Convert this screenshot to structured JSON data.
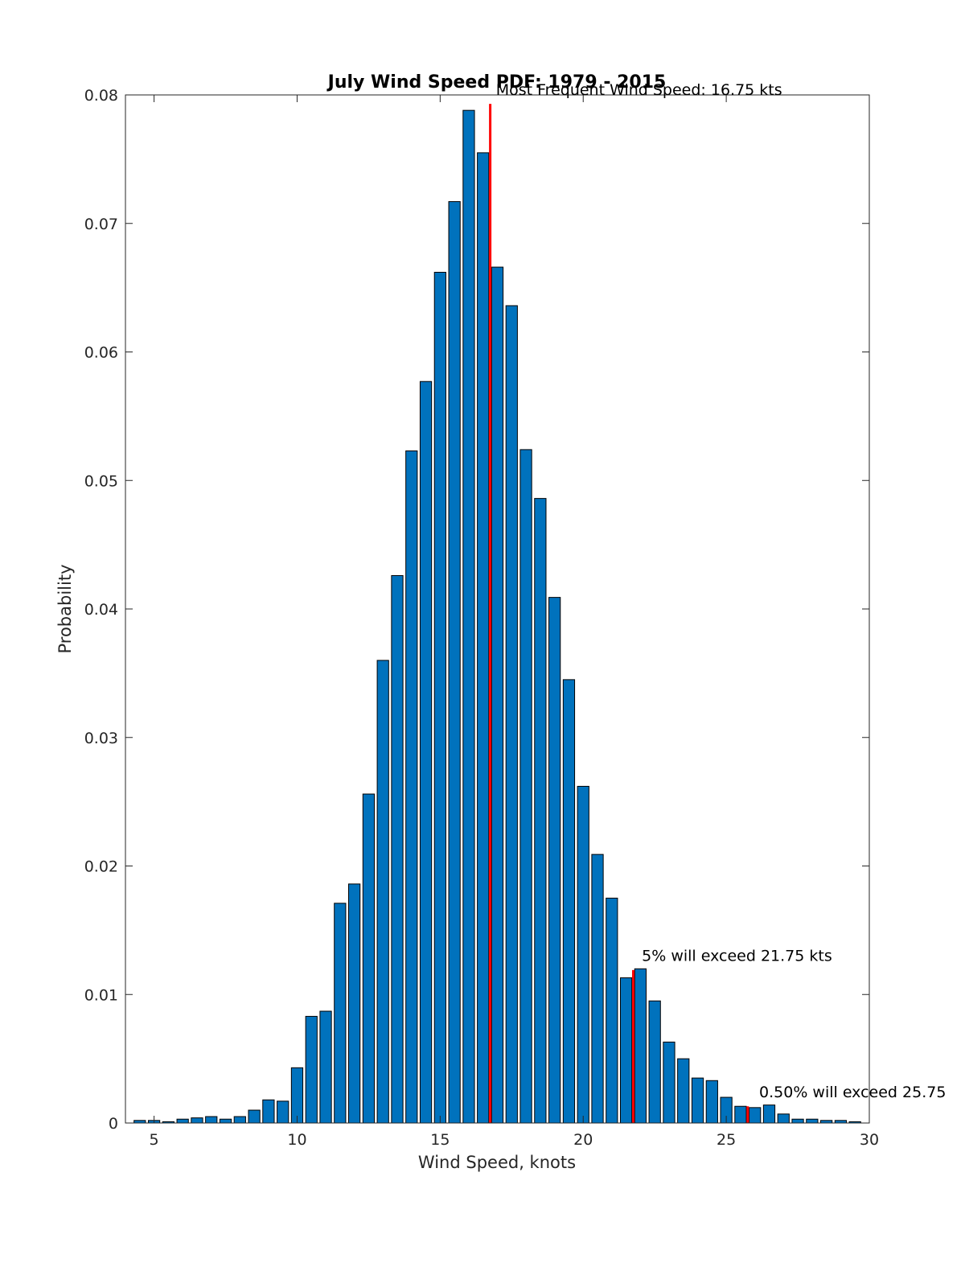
{
  "chart_data": {
    "type": "bar",
    "title": "July Wind Speed PDF: 1979 - 2015",
    "xlabel": "Wind Speed, knots",
    "ylabel": "Probability",
    "xlim": [
      4,
      30
    ],
    "ylim": [
      0,
      0.08
    ],
    "xticks": [
      5,
      10,
      15,
      20,
      25,
      30
    ],
    "xtick_labels": [
      "5",
      "10",
      "15",
      "20",
      "25",
      "30"
    ],
    "yticks": [
      0,
      0.01,
      0.02,
      0.03,
      0.04,
      0.05,
      0.06,
      0.07,
      0.08
    ],
    "ytick_labels": [
      "0",
      "0.01",
      "0.02",
      "0.03",
      "0.04",
      "0.05",
      "0.06",
      "0.07",
      "0.08"
    ],
    "grid": false,
    "bar_color": "#0072BD",
    "bar_edge_color": "#000000",
    "bar_width": 0.4,
    "x": [
      4.5,
      5,
      5.5,
      6,
      6.5,
      7,
      7.5,
      8,
      8.5,
      9,
      9.5,
      10,
      10.5,
      11,
      11.5,
      12,
      12.5,
      13,
      13.5,
      14,
      14.5,
      15,
      15.5,
      16,
      16.5,
      17,
      17.5,
      18,
      18.5,
      19,
      19.5,
      20,
      20.5,
      21,
      21.5,
      22,
      22.5,
      23,
      23.5,
      24,
      24.5,
      25,
      25.5,
      26,
      26.5,
      27,
      27.5,
      28,
      28.5,
      29,
      29.5
    ],
    "values": [
      0.0002,
      0.0002,
      0.0001,
      0.0003,
      0.0004,
      0.0005,
      0.0003,
      0.0005,
      0.001,
      0.0018,
      0.0017,
      0.0043,
      0.0083,
      0.0087,
      0.0171,
      0.0186,
      0.0256,
      0.036,
      0.0426,
      0.0523,
      0.0577,
      0.0662,
      0.0717,
      0.0788,
      0.0755,
      0.0666,
      0.0636,
      0.0524,
      0.0486,
      0.0409,
      0.0345,
      0.0262,
      0.0209,
      0.0175,
      0.0113,
      0.012,
      0.0095,
      0.0063,
      0.005,
      0.0035,
      0.0033,
      0.002,
      0.0013,
      0.0012,
      0.0014,
      0.0007,
      0.0003,
      0.0003,
      0.0002,
      0.0002,
      0.0001
    ],
    "reference_lines": [
      {
        "x": 16.75,
        "y_top": 0.0793,
        "color": "#FF0000",
        "label": "Most Frequent Wind Speed: 16.75 kts",
        "label_x": 16.95,
        "label_y": 0.08
      },
      {
        "x": 21.75,
        "y_top": 0.0119,
        "color": "#FF0000",
        "label": "5% will exceed 21.75 kts",
        "label_x": 22.05,
        "label_y": 0.0126
      },
      {
        "x": 25.75,
        "y_top": 0.0013,
        "color": "#FF0000",
        "label": "0.50% will exceed 25.75",
        "label_x": 26.15,
        "label_y": 0.002
      }
    ]
  }
}
